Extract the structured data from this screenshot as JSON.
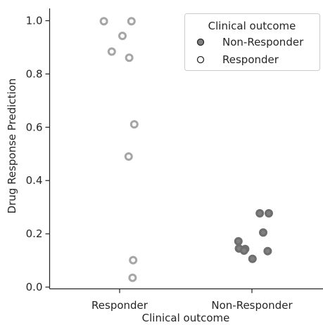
{
  "chart_data": {
    "type": "scatter",
    "title": "",
    "xlabel": "Clinical outcome",
    "ylabel": "Drug Response Prediction",
    "categories": [
      "Responder",
      "Non-Responder"
    ],
    "ylim": [
      -0.02,
      1.05
    ],
    "yticks": [
      0.0,
      0.2,
      0.4,
      0.6,
      0.8,
      1.0
    ],
    "ytick_labels": [
      "0.0",
      "0.2",
      "0.4",
      "0.6",
      "0.8",
      "1.0"
    ],
    "grid": false,
    "legend": {
      "title": "Clinical outcome",
      "placement": "top-right",
      "entries": [
        "Non-Responder",
        "Responder"
      ]
    },
    "series": [
      {
        "name": "Responder",
        "category": "Responder",
        "style": "hollow",
        "color": "#a6a6a6",
        "points": [
          {
            "jitter": -0.28,
            "y": 0.998
          },
          {
            "jitter": 0.21,
            "y": 0.998
          },
          {
            "jitter": 0.05,
            "y": 0.943
          },
          {
            "jitter": -0.14,
            "y": 0.884
          },
          {
            "jitter": 0.17,
            "y": 0.861
          },
          {
            "jitter": 0.26,
            "y": 0.611
          },
          {
            "jitter": 0.16,
            "y": 0.49
          },
          {
            "jitter": 0.24,
            "y": 0.101
          },
          {
            "jitter": 0.23,
            "y": 0.035
          }
        ]
      },
      {
        "name": "Non-Responder",
        "category": "Non-Responder",
        "style": "filled",
        "color": "#808080",
        "edgecolor": "#6e6e6e",
        "points": [
          {
            "jitter": 0.14,
            "y": 0.277
          },
          {
            "jitter": 0.3,
            "y": 0.277
          },
          {
            "jitter": 0.2,
            "y": 0.205
          },
          {
            "jitter": -0.24,
            "y": 0.172
          },
          {
            "jitter": -0.23,
            "y": 0.145
          },
          {
            "jitter": -0.12,
            "y": 0.143
          },
          {
            "jitter": -0.14,
            "y": 0.137
          },
          {
            "jitter": 0.28,
            "y": 0.135
          },
          {
            "jitter": 0.01,
            "y": 0.106
          }
        ]
      }
    ]
  }
}
